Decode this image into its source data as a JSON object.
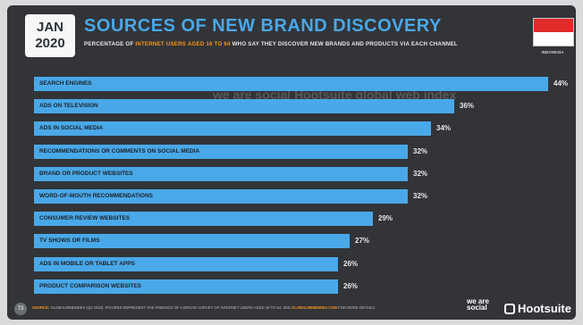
{
  "header": {
    "date_month": "JAN",
    "date_year": "2020",
    "title": "SOURCES OF NEW BRAND DISCOVERY",
    "subtitle_pre": "PERCENTAGE OF ",
    "subtitle_highlight": "INTERNET USERS AGED 16 TO 64",
    "subtitle_post": " WHO SAY THEY DISCOVER NEW BRANDS AND PRODUCTS VIA EACH CHANNEL"
  },
  "country": {
    "name": "INDONESIA"
  },
  "watermark": {
    "brand1": "we are social",
    "brand2": "Hootsuite",
    "brand3": "global web index"
  },
  "colors": {
    "bar": "#49a8e8",
    "background": "#323438",
    "accent": "#f7941d",
    "flag_red": "#e02b2b"
  },
  "chart_data": {
    "type": "bar",
    "orientation": "horizontal",
    "title": "SOURCES OF NEW BRAND DISCOVERY",
    "categories": [
      "SEARCH ENGINES",
      "ADS ON TELEVISION",
      "ADS IN SOCIAL MEDIA",
      "RECOMMENDATIONS OR COMMENTS ON SOCIAL MEDIA",
      "BRAND OR PRODUCT WEBSITES",
      "WORD-OF-MOUTH RECOMMENDATIONS",
      "CONSUMER REVIEW WEBSITES",
      "TV SHOWS OR FILMS",
      "ADS IN MOBILE OR TABLET APPS",
      "PRODUCT COMPARISON WEBSITES"
    ],
    "values": [
      44,
      36,
      34,
      32,
      32,
      32,
      29,
      27,
      26,
      26
    ],
    "value_labels": [
      "44%",
      "36%",
      "34%",
      "32%",
      "32%",
      "32%",
      "29%",
      "27%",
      "26%",
      "26%"
    ],
    "unit": "%",
    "xlim": [
      0,
      44
    ]
  },
  "footer": {
    "page_number": "73",
    "source_label": "SOURCE:",
    "source_text": " GLOBALWEBINDEX (Q3 2019). FIGURES REPRESENT THE FINDINGS OF A BROAD SURVEY OF INTERNET USERS AGED 16 TO 64. SEE ",
    "source_link": "GLOBALWEBINDEX.COM",
    "source_tail": " FOR MORE DETAILS.",
    "logo_ws": "we are social",
    "logo_hs": "Hootsuite"
  }
}
